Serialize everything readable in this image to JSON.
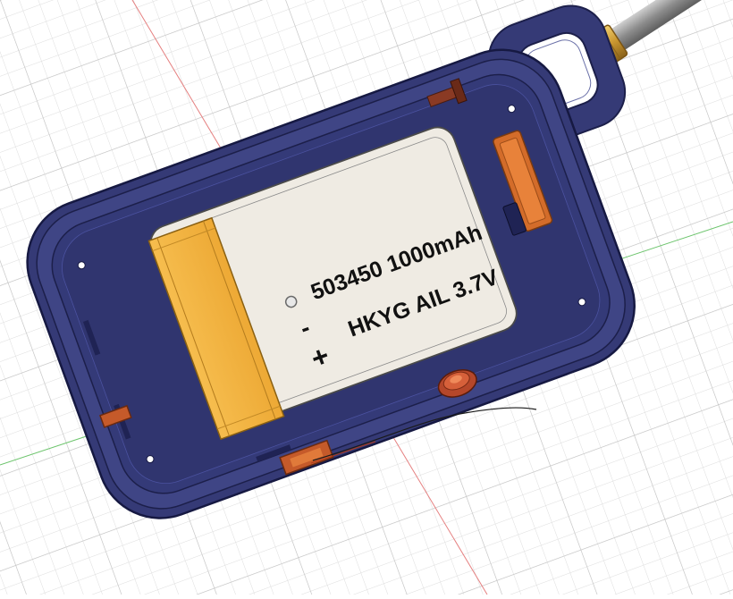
{
  "battery": {
    "capacity_label": "503450 1000mAh",
    "model_label": "HKYG AIL 3.7V",
    "minus_sign": "-",
    "plus_sign": "+"
  },
  "colors": {
    "grid_line": "#d4d4d4",
    "grid_major": "#bdbdbd",
    "axis_red": "#e06a6a",
    "axis_green": "#5fbf5f",
    "enclosure": "#3a3f7c",
    "enclosure_dark": "#262a5c",
    "battery_body": "#eeeae2",
    "battery_tape": "#f4b443",
    "copper_part": "#c2662e",
    "antenna": "#9a9a9a",
    "sma_brass": "#d8a63c"
  },
  "icons": [
    "origin-point-icon"
  ]
}
